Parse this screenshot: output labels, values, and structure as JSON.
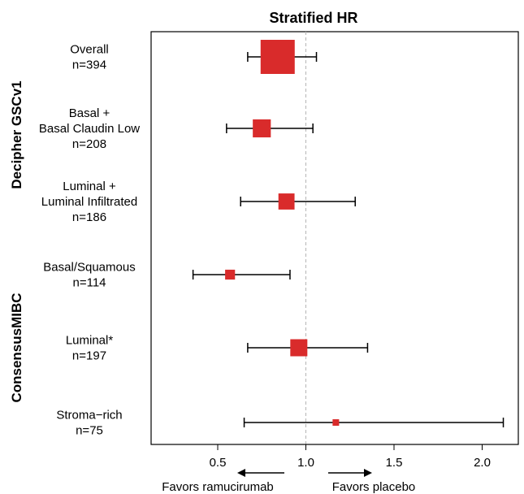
{
  "chart_data": {
    "type": "forest",
    "title": "Stratified HR",
    "xlim": [
      0.1,
      2.35
    ],
    "reference_line": 1.0,
    "xticks": [
      0.5,
      1.0,
      1.5,
      2.0
    ],
    "xtick_labels": [
      "0.5",
      "1.0",
      "1.5",
      "2.0"
    ],
    "groups": [
      {
        "label": "Decipher GSCv1",
        "rows": [
          0,
          1,
          2
        ]
      },
      {
        "label": "ConsensusMIBC",
        "rows": [
          3,
          4,
          5
        ]
      }
    ],
    "rows": [
      {
        "lines": [
          "Overall",
          "n=394"
        ],
        "n": 394,
        "hr": 0.84,
        "lower": 0.67,
        "upper": 1.06
      },
      {
        "lines": [
          "Basal +",
          "Basal Claudin Low",
          "n=208"
        ],
        "n": 208,
        "hr": 0.75,
        "lower": 0.55,
        "upper": 1.04
      },
      {
        "lines": [
          "Luminal +",
          "Luminal Infiltrated",
          "n=186"
        ],
        "n": 186,
        "hr": 0.89,
        "lower": 0.63,
        "upper": 1.28
      },
      {
        "lines": [
          "Basal/Squamous",
          "n=114"
        ],
        "n": 114,
        "hr": 0.57,
        "lower": 0.36,
        "upper": 0.91
      },
      {
        "lines": [
          "Luminal*",
          "n=197"
        ],
        "n": 197,
        "hr": 0.96,
        "lower": 0.67,
        "upper": 1.35
      },
      {
        "lines": [
          "Stroma−rich",
          "n=75"
        ],
        "n": 75,
        "hr": 1.17,
        "lower": 0.65,
        "upper": 2.12
      }
    ],
    "annotations": {
      "left": "Favors ramucirumab",
      "right": "Favors placebo"
    },
    "colors": {
      "box": "#d92b2b",
      "ci_line": "#000000",
      "reference": "#b5b5b5"
    }
  }
}
